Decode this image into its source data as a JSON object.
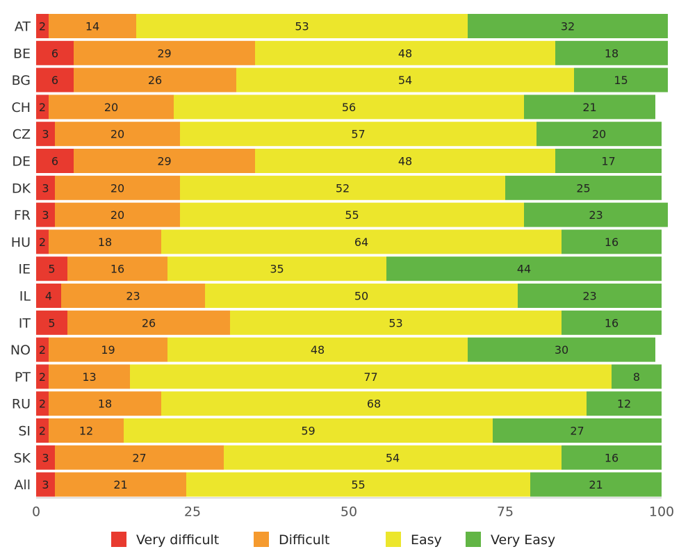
{
  "chart_data": {
    "type": "bar",
    "orientation": "horizontal",
    "stacked": true,
    "categories": [
      "AT",
      "BE",
      "BG",
      "CH",
      "CZ",
      "DE",
      "DK",
      "FR",
      "HU",
      "IE",
      "IL",
      "IT",
      "NO",
      "PT",
      "RU",
      "SI",
      "SK",
      "All"
    ],
    "series": [
      {
        "name": "Very difficult",
        "color": "#e83a2f",
        "values": [
          2,
          6,
          6,
          2,
          3,
          6,
          3,
          3,
          2,
          5,
          4,
          5,
          2,
          2,
          2,
          2,
          3,
          3
        ]
      },
      {
        "name": "Difficult",
        "color": "#f59a2e",
        "values": [
          14,
          29,
          26,
          20,
          20,
          29,
          20,
          20,
          18,
          16,
          23,
          26,
          19,
          13,
          18,
          12,
          27,
          21
        ]
      },
      {
        "name": "Easy",
        "color": "#ece62c",
        "values": [
          53,
          48,
          54,
          56,
          57,
          48,
          52,
          55,
          64,
          35,
          50,
          53,
          48,
          77,
          68,
          59,
          54,
          55
        ]
      },
      {
        "name": "Very Easy",
        "color": "#62b545",
        "values": [
          32,
          18,
          15,
          21,
          20,
          17,
          25,
          23,
          16,
          44,
          23,
          16,
          30,
          8,
          12,
          27,
          16,
          21
        ]
      }
    ],
    "xlim": [
      0,
      100
    ],
    "xticks": [
      0,
      25,
      50,
      75,
      100
    ],
    "grid": false,
    "legend_position": "bottom",
    "title": "",
    "xlabel": "",
    "ylabel": ""
  }
}
